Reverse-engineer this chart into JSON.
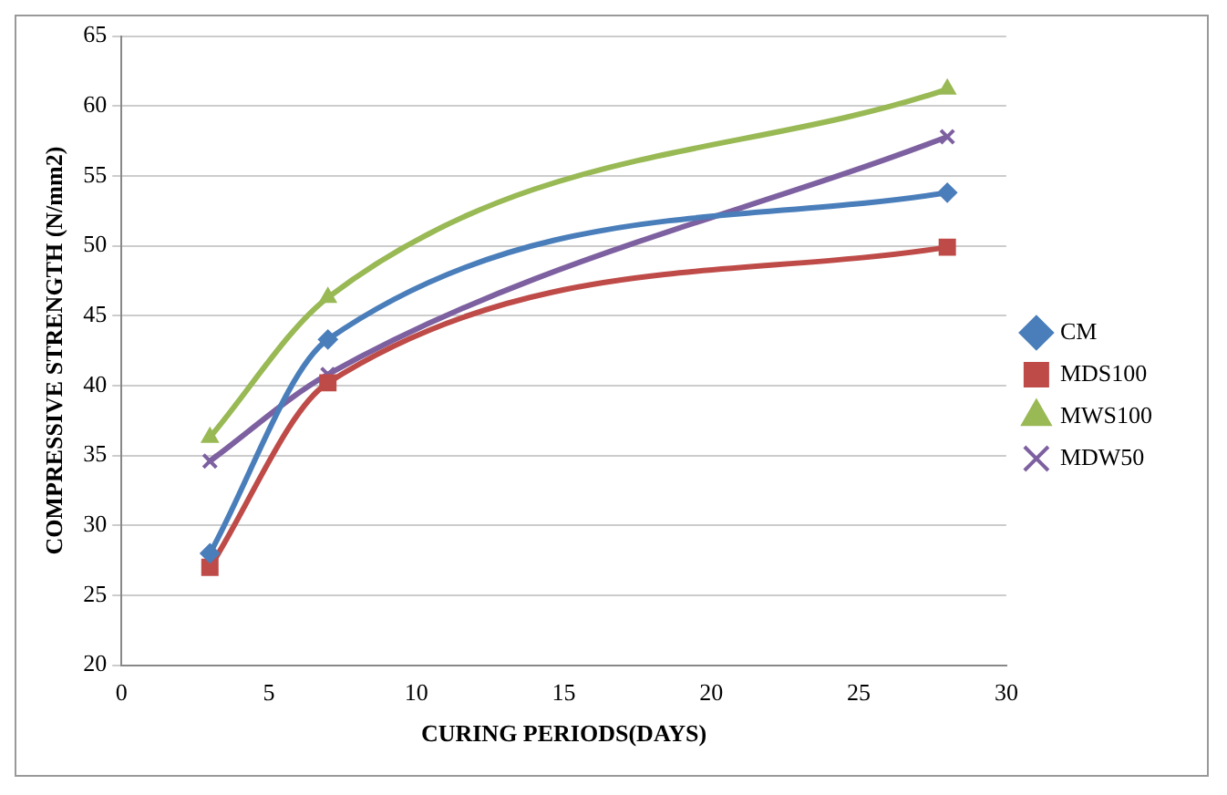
{
  "chart_data": {
    "type": "line",
    "xlabel": "CURING PERIODS(DAYS)",
    "ylabel": "COMPRESSIVE STRENGTH (N/mm2)",
    "x": [
      3,
      7,
      28
    ],
    "series": [
      {
        "name": "CM",
        "color": "#4a7ebb",
        "values": [
          28,
          43.3,
          53.8
        ],
        "marker": "diamond"
      },
      {
        "name": "MDS100",
        "color": "#be4b48",
        "values": [
          27,
          40.2,
          49.9
        ],
        "marker": "square"
      },
      {
        "name": "MWS100",
        "color": "#98b954",
        "values": [
          36.3,
          46.3,
          61.2
        ],
        "marker": "triangle"
      },
      {
        "name": "MDW50",
        "color": "#7d60a0",
        "values": [
          34.6,
          40.8,
          57.8
        ],
        "marker": "cross"
      }
    ],
    "xlim": [
      0,
      30
    ],
    "xticks": [
      0,
      5,
      10,
      15,
      20,
      25,
      30
    ],
    "ylim": [
      20,
      65
    ],
    "yticks": [
      20,
      25,
      30,
      35,
      40,
      45,
      50,
      55,
      60,
      65
    ],
    "grid": "y",
    "legend": "right"
  }
}
